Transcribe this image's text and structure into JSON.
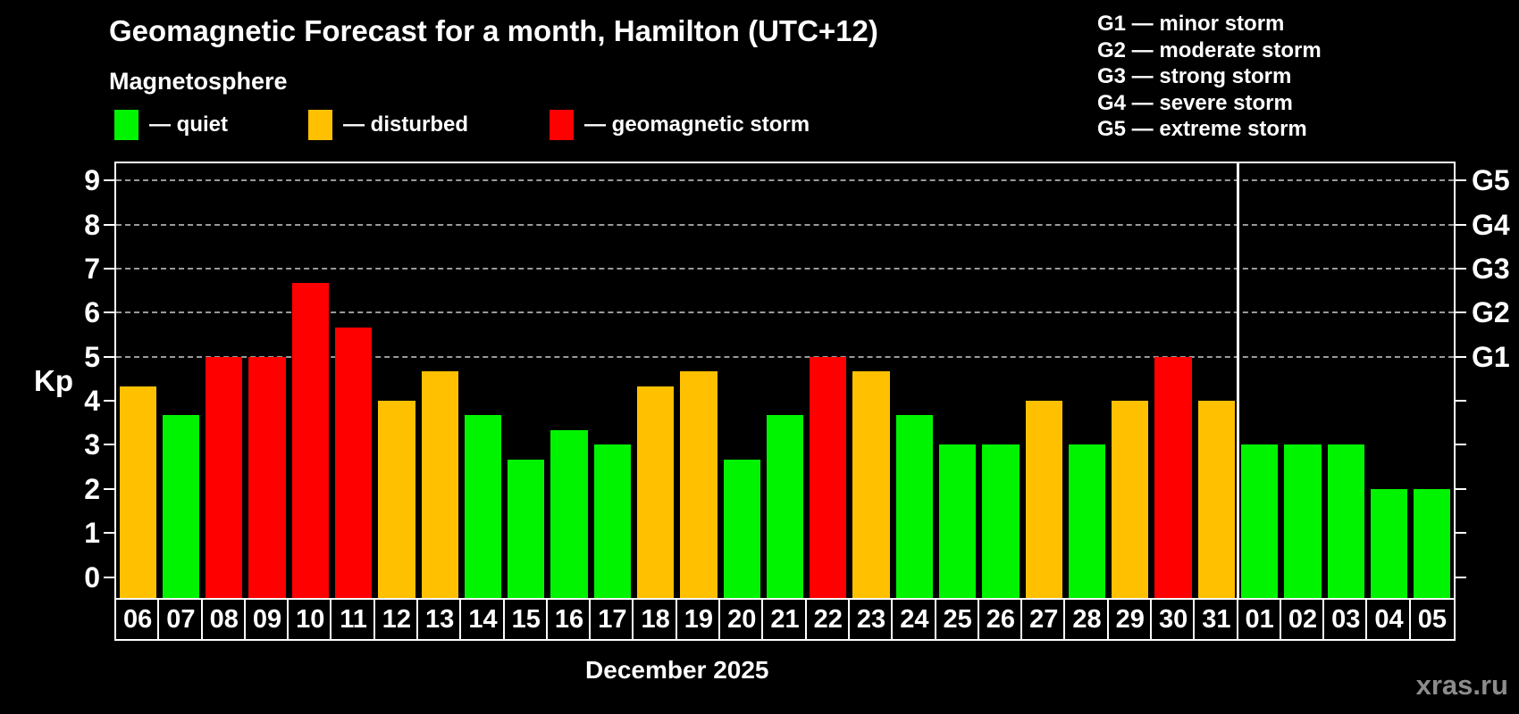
{
  "header": {
    "title": "Geomagnetic Forecast for a month, Hamilton (UTC+12)",
    "subtitle": "Magnetosphere"
  },
  "legend": {
    "items": [
      {
        "key": "quiet",
        "label": "— quiet",
        "color": "#00f400"
      },
      {
        "key": "disturbed",
        "label": "— disturbed",
        "color": "#ffc000"
      },
      {
        "key": "storm",
        "label": "— geomagnetic storm",
        "color": "#ff0000"
      }
    ]
  },
  "g_legend": {
    "items": [
      "G1 — minor storm",
      "G2 — moderate storm",
      "G3 — strong storm",
      "G4 — severe storm",
      "G5 — extreme storm"
    ]
  },
  "watermark": "xras.ru",
  "chart_data": {
    "type": "bar",
    "title": "Geomagnetic Forecast for a month, Hamilton (UTC+12)",
    "ylabel": "Kp",
    "xlabel": "December 2025",
    "ylim": [
      0,
      9.4
    ],
    "yticks": [
      0,
      1,
      2,
      3,
      4,
      5,
      6,
      7,
      8,
      9
    ],
    "gridlines": [
      5,
      6,
      7,
      8,
      9
    ],
    "grid_style": "dashed",
    "legend_position": "top-left",
    "right_axis_labels": [
      {
        "label": "G1",
        "value": 5
      },
      {
        "label": "G2",
        "value": 6
      },
      {
        "label": "G3",
        "value": 7
      },
      {
        "label": "G4",
        "value": 8
      },
      {
        "label": "G5",
        "value": 9
      }
    ],
    "divider_after_index": 25,
    "colors": {
      "quiet": "#00f400",
      "disturbed": "#ffc000",
      "storm": "#ff0000"
    },
    "days": [
      {
        "date": "06",
        "kp": 4.33,
        "status": "disturbed"
      },
      {
        "date": "07",
        "kp": 3.67,
        "status": "quiet"
      },
      {
        "date": "08",
        "kp": 5.0,
        "status": "storm"
      },
      {
        "date": "09",
        "kp": 5.0,
        "status": "storm"
      },
      {
        "date": "10",
        "kp": 6.67,
        "status": "storm"
      },
      {
        "date": "11",
        "kp": 5.67,
        "status": "storm"
      },
      {
        "date": "12",
        "kp": 4.0,
        "status": "disturbed"
      },
      {
        "date": "13",
        "kp": 4.67,
        "status": "disturbed"
      },
      {
        "date": "14",
        "kp": 3.67,
        "status": "quiet"
      },
      {
        "date": "15",
        "kp": 2.67,
        "status": "quiet"
      },
      {
        "date": "16",
        "kp": 3.33,
        "status": "quiet"
      },
      {
        "date": "17",
        "kp": 3.0,
        "status": "quiet"
      },
      {
        "date": "18",
        "kp": 4.33,
        "status": "disturbed"
      },
      {
        "date": "19",
        "kp": 4.67,
        "status": "disturbed"
      },
      {
        "date": "20",
        "kp": 2.67,
        "status": "quiet"
      },
      {
        "date": "21",
        "kp": 3.67,
        "status": "quiet"
      },
      {
        "date": "22",
        "kp": 5.0,
        "status": "storm"
      },
      {
        "date": "23",
        "kp": 4.67,
        "status": "disturbed"
      },
      {
        "date": "24",
        "kp": 3.67,
        "status": "quiet"
      },
      {
        "date": "25",
        "kp": 3.0,
        "status": "quiet"
      },
      {
        "date": "26",
        "kp": 3.0,
        "status": "quiet"
      },
      {
        "date": "27",
        "kp": 4.0,
        "status": "disturbed"
      },
      {
        "date": "28",
        "kp": 3.0,
        "status": "quiet"
      },
      {
        "date": "29",
        "kp": 4.0,
        "status": "disturbed"
      },
      {
        "date": "30",
        "kp": 5.0,
        "status": "storm"
      },
      {
        "date": "31",
        "kp": 4.0,
        "status": "disturbed"
      },
      {
        "date": "01",
        "kp": 3.0,
        "status": "quiet"
      },
      {
        "date": "02",
        "kp": 3.0,
        "status": "quiet"
      },
      {
        "date": "03",
        "kp": 3.0,
        "status": "quiet"
      },
      {
        "date": "04",
        "kp": 2.0,
        "status": "quiet"
      },
      {
        "date": "05",
        "kp": 2.0,
        "status": "quiet"
      }
    ]
  }
}
